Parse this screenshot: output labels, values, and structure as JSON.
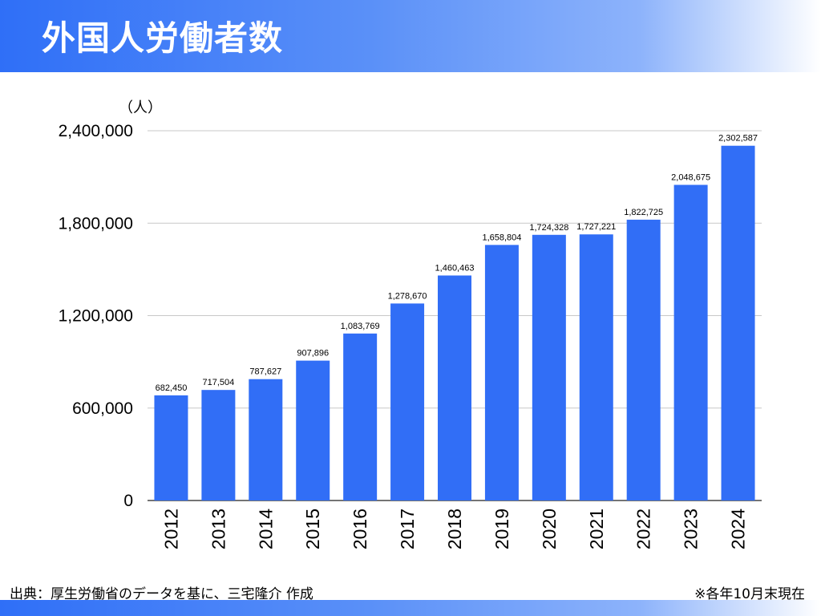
{
  "header": {
    "title": "外国人労働者数"
  },
  "footer": {
    "source": "出典：厚生労働省のデータを基に、三宅隆介 作成",
    "note": "※各年10月末現在"
  },
  "colors": {
    "bar": "#316ef6",
    "header_start": "#2f6ff7",
    "grid": "#c8c8c8"
  },
  "chart_data": {
    "type": "bar",
    "unit_label": "（人）",
    "categories": [
      "2012",
      "2013",
      "2014",
      "2015",
      "2016",
      "2017",
      "2018",
      "2019",
      "2020",
      "2021",
      "2022",
      "2023",
      "2024"
    ],
    "values": [
      682450,
      717504,
      787627,
      907896,
      1083769,
      1278670,
      1460463,
      1658804,
      1724328,
      1727221,
      1822725,
      2048675,
      2302587
    ],
    "value_labels": [
      "682,450",
      "717,504",
      "787,627",
      "907,896",
      "1,083,769",
      "1,278,670",
      "1,460,463",
      "1,658,804",
      "1,724,328",
      "1,727,221",
      "1,822,725",
      "2,048,675",
      "2,302,587"
    ],
    "yticks": [
      0,
      600000,
      1200000,
      1800000,
      2400000
    ],
    "ytick_labels": [
      "0",
      "600,000",
      "1,200,000",
      "1,800,000",
      "2,400,000"
    ],
    "ylim": [
      0,
      2400000
    ],
    "grid": true,
    "xlabel": "",
    "ylabel": ""
  }
}
